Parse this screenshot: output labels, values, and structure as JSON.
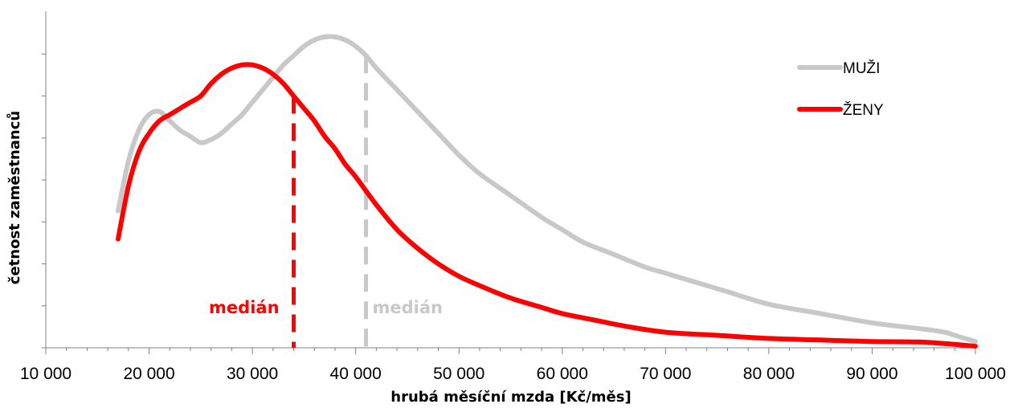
{
  "chart_data": {
    "type": "line",
    "xlabel": "hrubá měsíční mzda [Kč/měs]",
    "ylabel": "četnost zaměstnanců",
    "xlim": [
      10000,
      100000
    ],
    "ylim": [
      0,
      100
    ],
    "x_ticks": [
      10000,
      20000,
      30000,
      40000,
      50000,
      60000,
      70000,
      80000,
      90000,
      100000
    ],
    "x_tick_labels": [
      "10 000",
      "20 000",
      "30 000",
      "40 000",
      "50 000",
      "60 000",
      "70 000",
      "80 000",
      "90 000",
      "100 000"
    ],
    "y_ticks": [
      0,
      13.5,
      27,
      40.5,
      54,
      67.5,
      81,
      94.5
    ],
    "y_tick_labels_shown": false,
    "grid": false,
    "legend_position": "top-right",
    "series": [
      {
        "name": "MUŽI",
        "color": "#c8c8c8",
        "x": [
          17000,
          18000,
          19000,
          20000,
          21000,
          22000,
          23000,
          24000,
          25000,
          26000,
          27000,
          28000,
          29000,
          30000,
          31000,
          32000,
          33000,
          34000,
          35000,
          36000,
          37000,
          38000,
          39000,
          40000,
          41000,
          42000,
          44000,
          46000,
          48000,
          50000,
          52000,
          55000,
          58000,
          60000,
          62000,
          65000,
          68000,
          70000,
          73000,
          76000,
          80000,
          85000,
          90000,
          95000,
          97000,
          98000,
          100000
        ],
        "y": [
          44,
          60,
          70,
          75,
          76,
          73,
          70,
          68,
          66,
          67,
          69,
          72,
          75,
          79,
          83,
          87,
          91,
          94,
          97,
          99,
          100,
          100,
          99,
          97,
          94,
          90,
          83,
          76,
          69,
          62,
          56,
          49,
          42,
          38,
          34,
          30,
          26,
          24,
          21,
          18,
          14,
          11,
          8,
          6,
          5,
          4,
          2
        ]
      },
      {
        "name": "ŽENY",
        "color": "#ff0000",
        "x": [
          17000,
          18000,
          19000,
          20000,
          21000,
          22000,
          23000,
          24000,
          25000,
          26000,
          27000,
          28000,
          29000,
          30000,
          31000,
          32000,
          33000,
          34000,
          35000,
          36000,
          37000,
          38000,
          39000,
          40000,
          42000,
          44000,
          46000,
          48000,
          50000,
          52000,
          55000,
          58000,
          60000,
          63000,
          66000,
          70000,
          75000,
          80000,
          85000,
          90000,
          95000,
          100000
        ],
        "y": [
          35,
          52,
          63,
          69,
          73,
          75,
          77,
          79,
          81,
          85,
          88,
          90,
          91,
          91,
          90,
          88,
          85,
          81,
          77,
          73,
          68,
          64,
          59,
          55,
          46,
          38,
          32,
          27,
          23,
          20,
          16,
          13,
          11,
          9,
          7,
          5,
          4,
          3,
          2.5,
          2,
          1.8,
          0.5
        ]
      }
    ],
    "annotations": [
      {
        "label": "medián",
        "x": 34000,
        "color": "#ff0000",
        "series": "ŽENY"
      },
      {
        "label": "medián",
        "x": 41000,
        "color": "#c8c8c8",
        "series": "MUŽI"
      }
    ]
  }
}
